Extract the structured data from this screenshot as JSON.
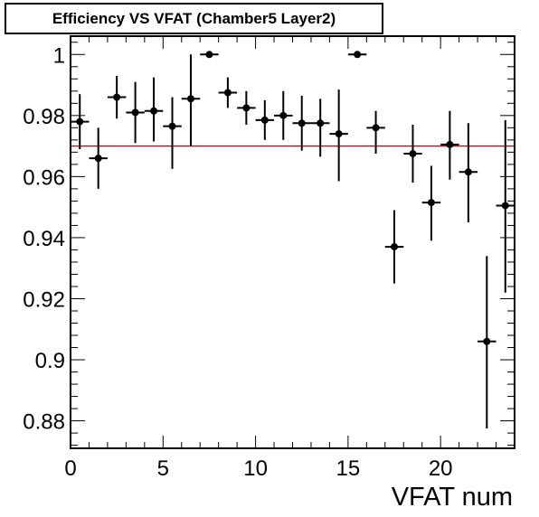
{
  "chart_data": {
    "type": "scatter",
    "title": "Efficiency VS VFAT (Chamber5 Layer2)",
    "xlabel": "VFAT num",
    "ylabel": "",
    "xlim": [
      0,
      24
    ],
    "ylim": [
      0.871,
      1.006
    ],
    "x_ticks": [
      0,
      5,
      10,
      15,
      20
    ],
    "y_ticks": [
      0.88,
      0.9,
      0.92,
      0.94,
      0.96,
      0.98,
      1
    ],
    "y_tick_labels": [
      "0.88",
      "0.9",
      "0.92",
      "0.94",
      "0.96",
      "0.98",
      "1"
    ],
    "reference_line": {
      "y": 0.97,
      "color": "#cc0000"
    },
    "grid": false,
    "points": [
      {
        "x": 0.5,
        "y": 0.978,
        "err_lo": 0.009,
        "err_hi": 0.009
      },
      {
        "x": 1.5,
        "y": 0.966,
        "err_lo": 0.01,
        "err_hi": 0.01
      },
      {
        "x": 2.5,
        "y": 0.986,
        "err_lo": 0.007,
        "err_hi": 0.007
      },
      {
        "x": 3.5,
        "y": 0.981,
        "err_lo": 0.01,
        "err_hi": 0.01
      },
      {
        "x": 4.5,
        "y": 0.9815,
        "err_lo": 0.01,
        "err_hi": 0.011
      },
      {
        "x": 5.5,
        "y": 0.9765,
        "err_lo": 0.014,
        "err_hi": 0.0095
      },
      {
        "x": 6.5,
        "y": 0.9855,
        "err_lo": 0.0155,
        "err_hi": 0.0145
      },
      {
        "x": 7.5,
        "y": 1.0,
        "err_lo": 0.0,
        "err_hi": 0.0
      },
      {
        "x": 8.5,
        "y": 0.9875,
        "err_lo": 0.005,
        "err_hi": 0.005
      },
      {
        "x": 9.5,
        "y": 0.9825,
        "err_lo": 0.0055,
        "err_hi": 0.0055
      },
      {
        "x": 10.5,
        "y": 0.9785,
        "err_lo": 0.0065,
        "err_hi": 0.0065
      },
      {
        "x": 11.5,
        "y": 0.98,
        "err_lo": 0.008,
        "err_hi": 0.008
      },
      {
        "x": 12.5,
        "y": 0.9775,
        "err_lo": 0.009,
        "err_hi": 0.009
      },
      {
        "x": 13.5,
        "y": 0.9775,
        "err_lo": 0.011,
        "err_hi": 0.008
      },
      {
        "x": 14.5,
        "y": 0.974,
        "err_lo": 0.0155,
        "err_hi": 0.0145
      },
      {
        "x": 15.5,
        "y": 1.0,
        "err_lo": 0.0,
        "err_hi": 0.0
      },
      {
        "x": 16.5,
        "y": 0.976,
        "err_lo": 0.0085,
        "err_hi": 0.0055
      },
      {
        "x": 17.5,
        "y": 0.937,
        "err_lo": 0.012,
        "err_hi": 0.012
      },
      {
        "x": 18.5,
        "y": 0.9675,
        "err_lo": 0.0095,
        "err_hi": 0.0095
      },
      {
        "x": 19.5,
        "y": 0.9515,
        "err_lo": 0.0125,
        "err_hi": 0.012
      },
      {
        "x": 20.5,
        "y": 0.9705,
        "err_lo": 0.0115,
        "err_hi": 0.011
      },
      {
        "x": 21.5,
        "y": 0.9615,
        "err_lo": 0.0165,
        "err_hi": 0.016
      },
      {
        "x": 22.5,
        "y": 0.906,
        "err_lo": 0.0285,
        "err_hi": 0.028
      },
      {
        "x": 23.5,
        "y": 0.9505,
        "err_lo": 0.0285,
        "err_hi": 0.028
      }
    ],
    "x_error_halfwidth": 0.5,
    "marker_color": "#000000"
  }
}
